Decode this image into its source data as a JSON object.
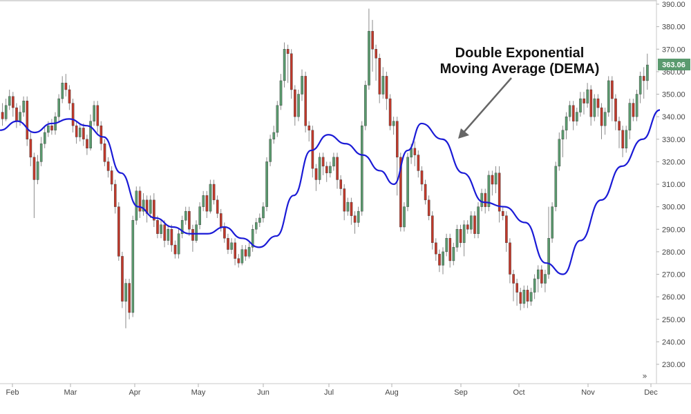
{
  "chart_data": {
    "type": "candlestick",
    "title": "",
    "annotation": [
      "Double Exponential",
      "Moving Average (DEMA)"
    ],
    "ylim": [
      220,
      392
    ],
    "y_ticks": [
      "230.00",
      "240.00",
      "250.00",
      "260.00",
      "270.00",
      "280.00",
      "290.00",
      "300.00",
      "310.00",
      "320.00",
      "330.00",
      "340.00",
      "350.00",
      "360.00",
      "370.00",
      "380.00",
      "390.00"
    ],
    "x_ticks": [
      "Feb",
      "Mar",
      "Apr",
      "May",
      "Jun",
      "Jul",
      "Aug",
      "Sep",
      "Oct",
      "Nov",
      "Dec"
    ],
    "last_price": "363.06",
    "scroll_symbol": "»",
    "grid": false,
    "colors": {
      "up": "#5a9a6e",
      "down": "#c0392b",
      "dema": "#1a1ad6",
      "arrow": "#666666",
      "last_label_bg": "#5a9a6e"
    },
    "candles": [
      [
        342,
        339,
        346,
        336
      ],
      [
        339,
        345,
        348,
        338
      ],
      [
        345,
        349,
        352,
        343
      ],
      [
        349,
        344,
        351,
        340
      ],
      [
        344,
        338,
        346,
        335
      ],
      [
        338,
        342,
        345,
        336
      ],
      [
        342,
        347,
        349,
        340
      ],
      [
        347,
        330,
        349,
        327
      ],
      [
        330,
        322,
        333,
        318
      ],
      [
        322,
        312,
        324,
        295
      ],
      [
        312,
        320,
        323,
        310
      ],
      [
        320,
        328,
        331,
        318
      ],
      [
        328,
        333,
        336,
        326
      ],
      [
        333,
        336,
        338,
        331
      ],
      [
        336,
        334,
        339,
        332
      ],
      [
        334,
        340,
        342,
        332
      ],
      [
        340,
        348,
        350,
        338
      ],
      [
        348,
        355,
        358,
        346
      ],
      [
        355,
        352,
        359,
        349
      ],
      [
        352,
        346,
        354,
        343
      ],
      [
        346,
        336,
        348,
        333
      ],
      [
        336,
        331,
        338,
        328
      ],
      [
        331,
        335,
        337,
        329
      ],
      [
        335,
        330,
        337,
        327
      ],
      [
        330,
        326,
        332,
        323
      ],
      [
        326,
        338,
        341,
        325
      ],
      [
        338,
        345,
        347,
        336
      ],
      [
        345,
        336,
        347,
        333
      ],
      [
        336,
        328,
        338,
        325
      ],
      [
        328,
        320,
        330,
        318
      ],
      [
        320,
        316,
        322,
        313
      ],
      [
        316,
        310,
        318,
        307
      ],
      [
        310,
        300,
        312,
        297
      ],
      [
        300,
        278,
        302,
        276
      ],
      [
        278,
        258,
        280,
        255
      ],
      [
        258,
        266,
        268,
        246
      ],
      [
        266,
        253,
        268,
        250
      ],
      [
        253,
        294,
        296,
        251
      ],
      [
        294,
        307,
        309,
        292
      ],
      [
        307,
        298,
        309,
        295
      ],
      [
        298,
        303,
        306,
        296
      ],
      [
        303,
        297,
        305,
        293
      ],
      [
        297,
        303,
        305,
        295
      ],
      [
        303,
        294,
        306,
        291
      ],
      [
        294,
        288,
        296,
        286
      ],
      [
        288,
        292,
        294,
        286
      ],
      [
        292,
        285,
        294,
        282
      ],
      [
        285,
        290,
        292,
        283
      ],
      [
        290,
        283,
        292,
        280
      ],
      [
        283,
        279,
        285,
        277
      ],
      [
        279,
        288,
        290,
        277
      ],
      [
        288,
        294,
        296,
        286
      ],
      [
        294,
        298,
        300,
        292
      ],
      [
        298,
        290,
        300,
        287
      ],
      [
        290,
        285,
        292,
        280
      ],
      [
        285,
        292,
        294,
        284
      ],
      [
        292,
        300,
        302,
        290
      ],
      [
        300,
        305,
        307,
        298
      ],
      [
        305,
        298,
        307,
        295
      ],
      [
        298,
        310,
        312,
        297
      ],
      [
        310,
        303,
        312,
        301
      ],
      [
        303,
        297,
        305,
        295
      ],
      [
        297,
        291,
        299,
        289
      ],
      [
        291,
        286,
        293,
        284
      ],
      [
        286,
        281,
        288,
        279
      ],
      [
        281,
        284,
        286,
        279
      ],
      [
        284,
        277,
        286,
        274
      ],
      [
        277,
        275,
        279,
        273
      ],
      [
        275,
        281,
        283,
        274
      ],
      [
        281,
        278,
        283,
        276
      ],
      [
        278,
        282,
        284,
        277
      ],
      [
        282,
        290,
        292,
        280
      ],
      [
        290,
        293,
        295,
        288
      ],
      [
        293,
        295,
        297,
        291
      ],
      [
        295,
        300,
        302,
        293
      ],
      [
        300,
        320,
        322,
        298
      ],
      [
        320,
        330,
        332,
        318
      ],
      [
        330,
        333,
        336,
        328
      ],
      [
        333,
        345,
        347,
        331
      ],
      [
        345,
        356,
        359,
        343
      ],
      [
        356,
        370,
        373,
        353
      ],
      [
        370,
        368,
        372,
        355
      ],
      [
        368,
        352,
        370,
        348
      ],
      [
        352,
        340,
        354,
        336
      ],
      [
        340,
        350,
        352,
        338
      ],
      [
        350,
        358,
        361,
        347
      ],
      [
        358,
        336,
        360,
        333
      ],
      [
        336,
        334,
        338,
        329
      ],
      [
        334,
        317,
        336,
        313
      ],
      [
        317,
        312,
        319,
        307
      ],
      [
        312,
        322,
        324,
        310
      ],
      [
        322,
        318,
        324,
        314
      ],
      [
        318,
        315,
        320,
        311
      ],
      [
        315,
        318,
        320,
        313
      ],
      [
        318,
        322,
        324,
        316
      ],
      [
        322,
        312,
        324,
        308
      ],
      [
        312,
        308,
        314,
        305
      ],
      [
        308,
        298,
        310,
        294
      ],
      [
        298,
        302,
        304,
        296
      ],
      [
        302,
        296,
        304,
        292
      ],
      [
        296,
        293,
        298,
        288
      ],
      [
        293,
        298,
        300,
        291
      ],
      [
        298,
        336,
        338,
        296
      ],
      [
        336,
        354,
        356,
        334
      ],
      [
        354,
        378,
        388,
        352
      ],
      [
        378,
        370,
        383,
        360
      ],
      [
        370,
        366,
        372,
        356
      ],
      [
        366,
        350,
        368,
        346
      ],
      [
        350,
        358,
        362,
        348
      ],
      [
        358,
        348,
        360,
        343
      ],
      [
        348,
        336,
        350,
        334
      ],
      [
        336,
        338,
        340,
        332
      ],
      [
        338,
        322,
        340,
        305
      ],
      [
        322,
        291,
        324,
        289
      ],
      [
        291,
        300,
        302,
        289
      ],
      [
        300,
        322,
        324,
        298
      ],
      [
        322,
        326,
        328,
        319
      ],
      [
        326,
        323,
        329,
        318
      ],
      [
        323,
        316,
        325,
        313
      ],
      [
        316,
        310,
        318,
        307
      ],
      [
        310,
        303,
        312,
        301
      ],
      [
        303,
        296,
        305,
        294
      ],
      [
        296,
        284,
        298,
        281
      ],
      [
        284,
        279,
        286,
        276
      ],
      [
        279,
        274,
        281,
        271
      ],
      [
        274,
        280,
        282,
        270
      ],
      [
        280,
        286,
        288,
        278
      ],
      [
        286,
        276,
        288,
        273
      ],
      [
        276,
        282,
        284,
        274
      ],
      [
        282,
        290,
        292,
        280
      ],
      [
        290,
        284,
        292,
        282
      ],
      [
        284,
        292,
        294,
        278
      ],
      [
        292,
        290,
        294,
        288
      ],
      [
        290,
        296,
        298,
        288
      ],
      [
        296,
        288,
        298,
        286
      ],
      [
        288,
        300,
        302,
        286
      ],
      [
        300,
        306,
        308,
        298
      ],
      [
        306,
        300,
        308,
        297
      ],
      [
        300,
        314,
        316,
        298
      ],
      [
        314,
        310,
        316,
        305
      ],
      [
        310,
        315,
        318,
        306
      ],
      [
        315,
        298,
        318,
        293
      ],
      [
        298,
        296,
        300,
        294
      ],
      [
        296,
        284,
        298,
        280
      ],
      [
        284,
        270,
        286,
        266
      ],
      [
        270,
        266,
        272,
        258
      ],
      [
        266,
        262,
        268,
        256
      ],
      [
        262,
        257,
        264,
        254
      ],
      [
        257,
        263,
        265,
        255
      ],
      [
        263,
        258,
        265,
        255
      ],
      [
        258,
        262,
        264,
        256
      ],
      [
        262,
        268,
        270,
        259
      ],
      [
        268,
        272,
        274,
        262
      ],
      [
        272,
        266,
        274,
        264
      ],
      [
        266,
        270,
        272,
        262
      ],
      [
        270,
        286,
        300,
        268
      ],
      [
        286,
        300,
        302,
        284
      ],
      [
        300,
        318,
        320,
        298
      ],
      [
        318,
        330,
        333,
        316
      ],
      [
        330,
        334,
        336,
        322
      ],
      [
        334,
        340,
        342,
        330
      ],
      [
        340,
        345,
        347,
        338
      ],
      [
        345,
        338,
        347,
        334
      ],
      [
        338,
        342,
        344,
        336
      ],
      [
        342,
        348,
        351,
        340
      ],
      [
        348,
        346,
        351,
        341
      ],
      [
        346,
        352,
        355,
        344
      ],
      [
        352,
        340,
        354,
        336
      ],
      [
        340,
        348,
        350,
        338
      ],
      [
        348,
        344,
        350,
        340
      ],
      [
        344,
        336,
        346,
        330
      ],
      [
        336,
        342,
        344,
        332
      ],
      [
        342,
        356,
        358,
        340
      ],
      [
        356,
        348,
        358,
        338
      ],
      [
        348,
        338,
        350,
        334
      ],
      [
        338,
        334,
        340,
        326
      ],
      [
        334,
        326,
        336,
        322
      ],
      [
        326,
        334,
        336,
        324
      ],
      [
        334,
        346,
        348,
        330
      ],
      [
        346,
        340,
        348,
        338
      ],
      [
        340,
        350,
        352,
        338
      ],
      [
        350,
        358,
        360,
        346
      ],
      [
        358,
        356,
        362,
        348
      ],
      [
        356,
        363,
        368,
        352
      ]
    ],
    "dema": [
      [
        0,
        334
      ],
      [
        25,
        338
      ],
      [
        50,
        333
      ],
      [
        75,
        337
      ],
      [
        100,
        339
      ],
      [
        125,
        336
      ],
      [
        150,
        331
      ],
      [
        175,
        315
      ],
      [
        200,
        300
      ],
      [
        225,
        295
      ],
      [
        250,
        291
      ],
      [
        275,
        288
      ],
      [
        300,
        288
      ],
      [
        325,
        291
      ],
      [
        350,
        286
      ],
      [
        375,
        282
      ],
      [
        400,
        287
      ],
      [
        425,
        305
      ],
      [
        450,
        325
      ],
      [
        475,
        332
      ],
      [
        500,
        328
      ],
      [
        525,
        323
      ],
      [
        550,
        316
      ],
      [
        570,
        310
      ],
      [
        590,
        325
      ],
      [
        610,
        337
      ],
      [
        640,
        330
      ],
      [
        670,
        315
      ],
      [
        700,
        302
      ],
      [
        730,
        300
      ],
      [
        760,
        293
      ],
      [
        790,
        275
      ],
      [
        815,
        270
      ],
      [
        840,
        285
      ],
      [
        870,
        303
      ],
      [
        900,
        318
      ],
      [
        930,
        330
      ],
      [
        955,
        343
      ]
    ]
  }
}
